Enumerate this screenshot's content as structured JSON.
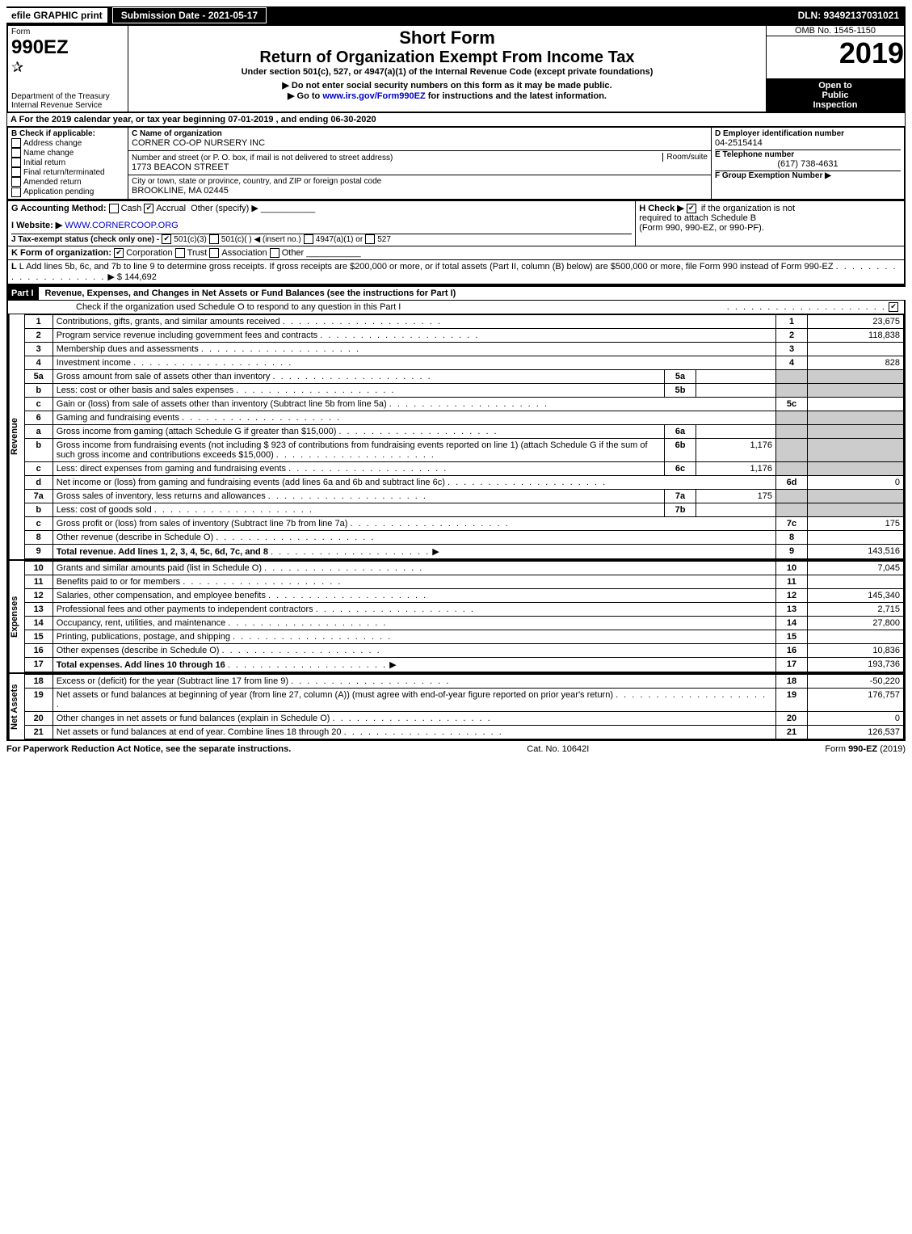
{
  "topbar": {
    "efile": "efile GRAPHIC print",
    "submission": "Submission Date - 2021-05-17",
    "dln": "DLN: 93492137031021"
  },
  "header": {
    "form_label": "Form",
    "form_number": "990EZ",
    "dept": "Department of the Treasury",
    "irs": "Internal Revenue Service",
    "short_form": "Short Form",
    "main_title": "Return of Organization Exempt From Income Tax",
    "subtitle": "Under section 501(c), 527, or 4947(a)(1) of the Internal Revenue Code (except private foundations)",
    "warn1": "Do not enter social security numbers on this form as it may be made public.",
    "warn2": "Go to www.irs.gov/Form990EZ for instructions and the latest information.",
    "omb": "OMB No. 1545-1150",
    "year": "2019",
    "inspect1": "Open to",
    "inspect2": "Public",
    "inspect3": "Inspection"
  },
  "section_a": {
    "period": "A For the 2019 calendar year, or tax year beginning 07-01-2019 , and ending 06-30-2020",
    "b_label": "B Check if applicable:",
    "b_opts": [
      "Address change",
      "Name change",
      "Initial return",
      "Final return/terminated",
      "Amended return",
      "Application pending"
    ],
    "c_label": "C Name of organization",
    "org_name": "CORNER CO-OP NURSERY INC",
    "addr_label": "Number and street (or P. O. box, if mail is not delivered to street address)",
    "addr": "1773 BEACON STREET",
    "room_label": "Room/suite",
    "city_label": "City or town, state or province, country, and ZIP or foreign postal code",
    "city": "BROOKLINE, MA  02445",
    "d_label": "D Employer identification number",
    "ein": "04-2515414",
    "e_label": "E Telephone number",
    "phone": "(617) 738-4631",
    "f_label": "F Group Exemption Number",
    "g_label": "G Accounting Method:",
    "g_cash": "Cash",
    "g_accrual": "Accrual",
    "g_other": "Other (specify)",
    "h_label": "H Check ▶",
    "h_text1": "if the organization is not",
    "h_text2": "required to attach Schedule B",
    "h_text3": "(Form 990, 990-EZ, or 990-PF).",
    "i_label": "I Website: ▶",
    "website": "WWW.CORNERCOOP.ORG",
    "j_label": "J Tax-exempt status (check only one) -",
    "j_501c3": "501(c)(3)",
    "j_501c": "501(c)(  ) ◀ (insert no.)",
    "j_4947": "4947(a)(1) or",
    "j_527": "527",
    "k_label": "K Form of organization:",
    "k_corp": "Corporation",
    "k_trust": "Trust",
    "k_assoc": "Association",
    "k_other": "Other",
    "l_text": "L Add lines 5b, 6c, and 7b to line 9 to determine gross receipts. If gross receipts are $200,000 or more, or if total assets (Part II, column (B) below) are $500,000 or more, file Form 990 instead of Form 990-EZ",
    "l_amount": "$ 144,692"
  },
  "part1": {
    "title": "Part I",
    "heading": "Revenue, Expenses, and Changes in Net Assets or Fund Balances (see the instructions for Part I)",
    "check_text": "Check if the organization used Schedule O to respond to any question in this Part I",
    "revenue_label": "Revenue",
    "expenses_label": "Expenses",
    "netassets_label": "Net Assets",
    "sub_6b_amount": "923",
    "lines": [
      {
        "n": "1",
        "label": "Contributions, gifts, grants, and similar amounts received",
        "ref": "1",
        "amt": "23,675"
      },
      {
        "n": "2",
        "label": "Program service revenue including government fees and contracts",
        "ref": "2",
        "amt": "118,838"
      },
      {
        "n": "3",
        "label": "Membership dues and assessments",
        "ref": "3",
        "amt": ""
      },
      {
        "n": "4",
        "label": "Investment income",
        "ref": "4",
        "amt": "828"
      },
      {
        "n": "5a",
        "label": "Gross amount from sale of assets other than inventory",
        "sub": "5a",
        "subval": ""
      },
      {
        "n": "b",
        "label": "Less: cost or other basis and sales expenses",
        "sub": "5b",
        "subval": ""
      },
      {
        "n": "c",
        "label": "Gain or (loss) from sale of assets other than inventory (Subtract line 5b from line 5a)",
        "ref": "5c",
        "amt": ""
      },
      {
        "n": "6",
        "label": "Gaming and fundraising events"
      },
      {
        "n": "a",
        "label": "Gross income from gaming (attach Schedule G if greater than $15,000)",
        "sub": "6a",
        "subval": ""
      },
      {
        "n": "b",
        "label": "Gross income from fundraising events (not including $ 923 of contributions from fundraising events reported on line 1) (attach Schedule G if the sum of such gross income and contributions exceeds $15,000)",
        "sub": "6b",
        "subval": "1,176"
      },
      {
        "n": "c",
        "label": "Less: direct expenses from gaming and fundraising events",
        "sub": "6c",
        "subval": "1,176"
      },
      {
        "n": "d",
        "label": "Net income or (loss) from gaming and fundraising events (add lines 6a and 6b and subtract line 6c)",
        "ref": "6d",
        "amt": "0"
      },
      {
        "n": "7a",
        "label": "Gross sales of inventory, less returns and allowances",
        "sub": "7a",
        "subval": "175"
      },
      {
        "n": "b",
        "label": "Less: cost of goods sold",
        "sub": "7b",
        "subval": ""
      },
      {
        "n": "c",
        "label": "Gross profit or (loss) from sales of inventory (Subtract line 7b from line 7a)",
        "ref": "7c",
        "amt": "175"
      },
      {
        "n": "8",
        "label": "Other revenue (describe in Schedule O)",
        "ref": "8",
        "amt": ""
      },
      {
        "n": "9",
        "label": "Total revenue. Add lines 1, 2, 3, 4, 5c, 6d, 7c, and 8",
        "ref": "9",
        "amt": "143,516",
        "bold": true
      }
    ],
    "expense_lines": [
      {
        "n": "10",
        "label": "Grants and similar amounts paid (list in Schedule O)",
        "ref": "10",
        "amt": "7,045"
      },
      {
        "n": "11",
        "label": "Benefits paid to or for members",
        "ref": "11",
        "amt": ""
      },
      {
        "n": "12",
        "label": "Salaries, other compensation, and employee benefits",
        "ref": "12",
        "amt": "145,340"
      },
      {
        "n": "13",
        "label": "Professional fees and other payments to independent contractors",
        "ref": "13",
        "amt": "2,715"
      },
      {
        "n": "14",
        "label": "Occupancy, rent, utilities, and maintenance",
        "ref": "14",
        "amt": "27,800"
      },
      {
        "n": "15",
        "label": "Printing, publications, postage, and shipping",
        "ref": "15",
        "amt": ""
      },
      {
        "n": "16",
        "label": "Other expenses (describe in Schedule O)",
        "ref": "16",
        "amt": "10,836"
      },
      {
        "n": "17",
        "label": "Total expenses. Add lines 10 through 16",
        "ref": "17",
        "amt": "193,736",
        "bold": true
      }
    ],
    "net_lines": [
      {
        "n": "18",
        "label": "Excess or (deficit) for the year (Subtract line 17 from line 9)",
        "ref": "18",
        "amt": "-50,220"
      },
      {
        "n": "19",
        "label": "Net assets or fund balances at beginning of year (from line 27, column (A)) (must agree with end-of-year figure reported on prior year's return)",
        "ref": "19",
        "amt": "176,757"
      },
      {
        "n": "20",
        "label": "Other changes in net assets or fund balances (explain in Schedule O)",
        "ref": "20",
        "amt": "0"
      },
      {
        "n": "21",
        "label": "Net assets or fund balances at end of year. Combine lines 18 through 20",
        "ref": "21",
        "amt": "126,537"
      }
    ]
  },
  "footer": {
    "left": "For Paperwork Reduction Act Notice, see the separate instructions.",
    "center": "Cat. No. 10642I",
    "right": "Form 990-EZ (2019)"
  }
}
